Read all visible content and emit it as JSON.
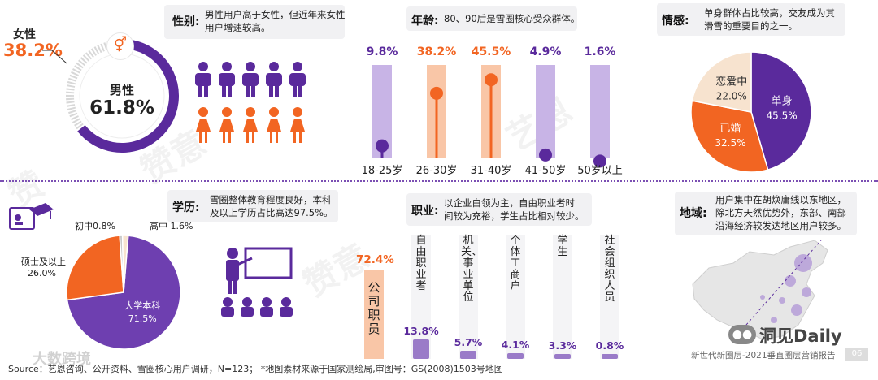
{
  "gender": {
    "title": "性别:",
    "desc_lines": [
      "男性用户高于女性，但近年来女性",
      "用户增速较高。"
    ],
    "female_label": "女性",
    "female_value": "38.2%",
    "male_label": "男性",
    "male_value": "61.8%"
  },
  "age": {
    "title": "年龄:",
    "desc": "80、90后是雪圈核心受众群体。"
  },
  "emotion": {
    "title": "情感:",
    "desc_lines": [
      "单身群体占比较高，交友成为其",
      "滑雪的重要目的之一。"
    ]
  },
  "education": {
    "title": "学历:",
    "desc_lines": [
      "雪圈整体教育程度良好，本科",
      "及以上学历占比高达97.5%。"
    ]
  },
  "occupation": {
    "title": "职业:",
    "desc_lines": [
      "以企业白领为主，自由职业者时",
      "间较为充裕，学生占比相对较少。"
    ]
  },
  "region": {
    "title": "地域:",
    "desc_lines": [
      "用户集中在胡焕庸线以东地区，",
      "除北方天然优势外，东部、南部",
      "沿海经济较发达地区用户较多。"
    ]
  },
  "chart_data": [
    {
      "type": "pie",
      "categories": [
        "男性",
        "女性"
      ],
      "values": [
        61.8,
        38.2
      ],
      "colors": [
        "#5a2a9c",
        "#f26522"
      ]
    },
    {
      "type": "bar",
      "categories": [
        "18-25岁",
        "26-30岁",
        "31-40岁",
        "41-50岁",
        "50岁以上"
      ],
      "values": [
        9.8,
        38.2,
        45.5,
        4.9,
        1.6
      ],
      "labels": [
        "9.8%",
        "38.2%",
        "45.5%",
        "4.9%",
        "1.6%"
      ],
      "colors": [
        "#5a2a9c",
        "#f26522",
        "#f26522",
        "#5a2a9c",
        "#5a2a9c"
      ]
    },
    {
      "type": "pie",
      "categories": [
        "单身",
        "已婚",
        "恋爱中"
      ],
      "values": [
        45.5,
        32.5,
        22.0
      ],
      "labels": [
        "45.5%",
        "32.5%",
        "22.0%"
      ],
      "colors": [
        "#5a2a9c",
        "#f26522",
        "#f7e3cf"
      ]
    },
    {
      "type": "pie",
      "categories": [
        "大学本科",
        "硕士及以上",
        "初中",
        "高中"
      ],
      "values": [
        71.5,
        26.0,
        0.8,
        1.6
      ],
      "labels": [
        "71.5%",
        "26.0%",
        "0.8%",
        "1.6%"
      ],
      "display_labels": [
        "大学本科",
        "硕士及以上",
        "初中0.8%",
        "高中 1.6%"
      ],
      "colors": [
        "#6e3fb0",
        "#f26522",
        "#c9c9c9",
        "#f7e3cf"
      ]
    },
    {
      "type": "bar",
      "categories": [
        "公司职员",
        "自由职业者",
        "机关、事业单位",
        "个体工商户",
        "学生",
        "社会组织人员"
      ],
      "values": [
        72.4,
        13.8,
        5.7,
        4.1,
        3.3,
        0.8
      ],
      "labels": [
        "72.4%",
        "13.8%",
        "5.7%",
        "4.1%",
        "3.3%",
        "0.8%"
      ]
    }
  ],
  "footer": {
    "source": "Source：艺恩咨询、公开资料、雪圈核心用户调研，N=123；  *地图素材来源于国家测绘局,审图号：GS(2008)1503号地图",
    "brand": "洞见Daily",
    "report": "新世代新圈层-2021垂直圈层营销报告",
    "page": "06",
    "watermark": "大数跨境"
  }
}
